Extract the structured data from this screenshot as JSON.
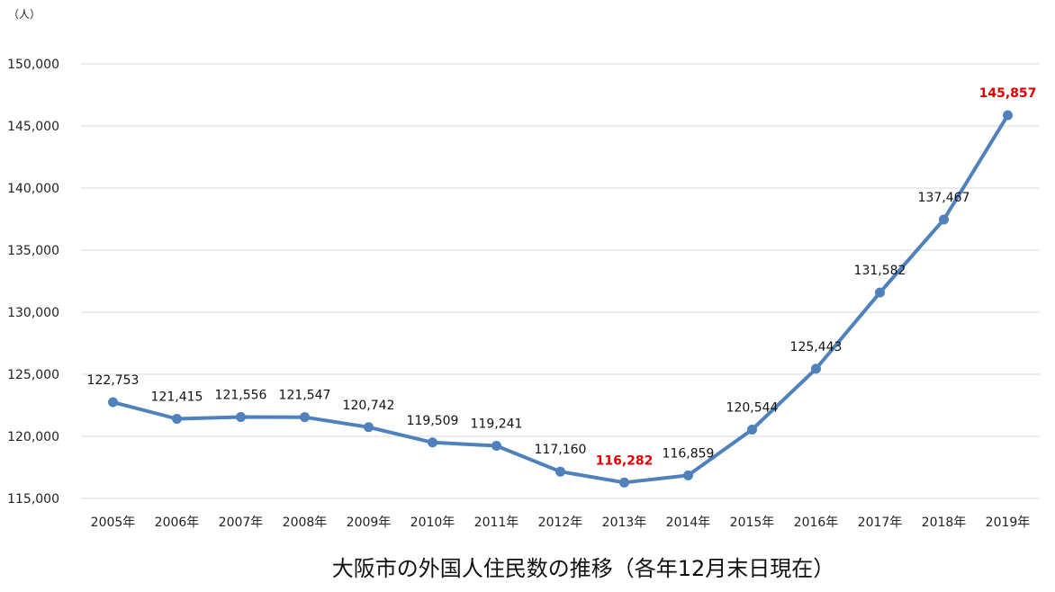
{
  "chart_data": {
    "type": "line",
    "title": "大阪市の外国人住民数の推移（各年12月末日現在）",
    "ylabel": "（人）",
    "xlabel": "",
    "categories": [
      "2005年",
      "2006年",
      "2007年",
      "2008年",
      "2009年",
      "2010年",
      "2011年",
      "2012年",
      "2013年",
      "2014年",
      "2015年",
      "2016年",
      "2017年",
      "2018年",
      "2019年"
    ],
    "series": [
      {
        "values": [
          122753,
          121415,
          121556,
          121547,
          120742,
          119509,
          119241,
          117160,
          116282,
          116859,
          120544,
          125443,
          131582,
          137467,
          145857
        ]
      }
    ],
    "data_labels": [
      "122,753",
      "121,415",
      "121,556",
      "121,547",
      "120,742",
      "119,509",
      "119,241",
      "117,160",
      "116,282",
      "116,859",
      "120,544",
      "125,443",
      "131,582",
      "137,467",
      "145,857"
    ],
    "highlighted_points": [
      "2013年",
      "2019年"
    ],
    "ylim": [
      115000,
      150000
    ],
    "yticks": [
      115000,
      120000,
      125000,
      130000,
      135000,
      140000,
      145000,
      150000
    ],
    "ytick_labels": [
      "115,000",
      "120,000",
      "125,000",
      "130,000",
      "135,000",
      "140,000",
      "145,000",
      "150,000"
    ],
    "grid": true,
    "legend": "none",
    "colors": {
      "line": "#4f81bd",
      "highlight": "#e00000",
      "grid": "#d9d9d9"
    }
  }
}
